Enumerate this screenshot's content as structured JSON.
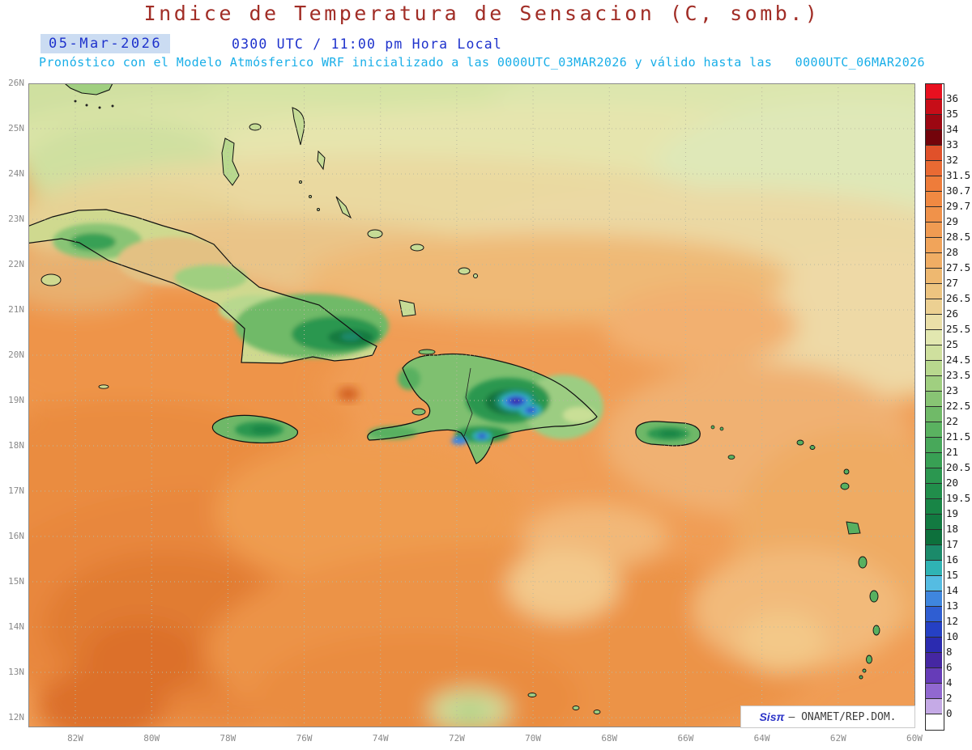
{
  "header": {
    "title": "Indice de Temperatura de Sensacion (C, somb.)",
    "date_label": "05-Mar-2026",
    "time_label": "0300 UTC / 11:00 pm Hora Local",
    "forecast_note": "Pronóstico con el Modelo Atmósferico WRF inicializado a las 0000UTC_03MAR2026 y válido hasta las   0000UTC_06MAR2026"
  },
  "map_axes": {
    "lat_labels": [
      "26N",
      "25N",
      "24N",
      "23N",
      "22N",
      "21N",
      "20N",
      "19N",
      "18N",
      "17N",
      "16N",
      "15N",
      "14N",
      "13N",
      "12N"
    ],
    "lon_labels": [
      "82W",
      "80W",
      "78W",
      "76W",
      "74W",
      "72W",
      "70W",
      "68W",
      "66W",
      "64W",
      "62W",
      "60W"
    ]
  },
  "colorbar": {
    "labels": [
      "36",
      "35",
      "34",
      "33",
      "32",
      "31.5",
      "30.7",
      "29.7",
      "29",
      "28.5",
      "28",
      "27.5",
      "27",
      "26.5",
      "26",
      "25.5",
      "25",
      "24.5",
      "23.5",
      "23",
      "22.5",
      "22",
      "21.5",
      "21",
      "20.5",
      "20",
      "19.5",
      "19",
      "18",
      "17",
      "16",
      "15",
      "14",
      "13",
      "12",
      "10",
      "8",
      "6",
      "4",
      "2",
      "0"
    ],
    "colors": [
      "#e8101f",
      "#c70d18",
      "#9c0712",
      "#73040b",
      "#e0512a",
      "#e96a33",
      "#ee7c3a",
      "#f08942",
      "#f0924a",
      "#f09b52",
      "#f1a45a",
      "#f0ad64",
      "#eeb870",
      "#edc480",
      "#ecd092",
      "#eadfa8",
      "#e2e7b0",
      "#cfe09e",
      "#b8d88e",
      "#a0cf80",
      "#88c474",
      "#70ba68",
      "#5ab260",
      "#48a85a",
      "#38a054",
      "#2b9750",
      "#218e4b",
      "#188546",
      "#127a41",
      "#0d703c",
      "#1b8a6a",
      "#2fb3b4",
      "#55bce2",
      "#3f86de",
      "#2f5ed2",
      "#2540c4",
      "#2b2bb0",
      "#4527a2",
      "#663cb8",
      "#9168d0",
      "#c5aae6",
      "#ffffff"
    ]
  },
  "watermark": {
    "brand": "Sisπ",
    "text": "– ONAMET/REP.DOM."
  },
  "theme": {
    "title_color": "#a12d26",
    "datetime_color": "#1e32cc",
    "subtitle_color": "#18aee8",
    "axis_label_color": "#8a8a8a"
  }
}
